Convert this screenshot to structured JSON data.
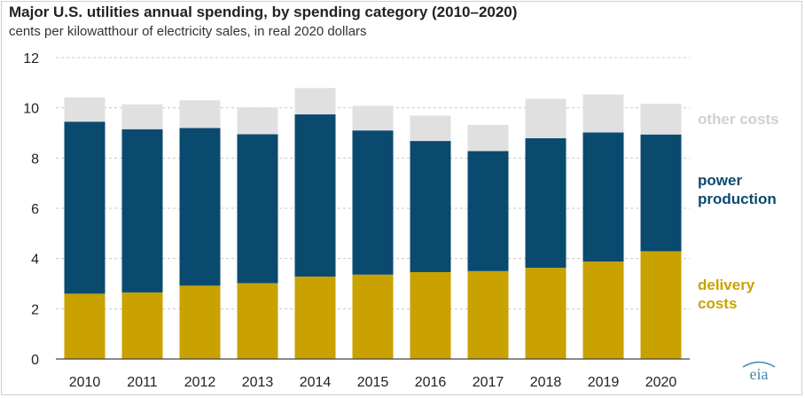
{
  "colors": {
    "delivery": "#C9A200",
    "power": "#0B4A6F",
    "other": "#E0E0E0",
    "axis": "#444444",
    "grid": "#C8C8C8",
    "logo": "#3E89A8"
  },
  "logo_text": "eia",
  "chart_data": {
    "type": "bar",
    "stacked": true,
    "title": "Major U.S. utilities annual spending, by spending category (2010–2020)",
    "subtitle": "cents per kilowatthour of electricity sales, in real 2020 dollars",
    "xlabel": "",
    "ylabel": "",
    "ylim": [
      0,
      12
    ],
    "yticks": [
      "0",
      "2",
      "4",
      "6",
      "8",
      "10",
      "12"
    ],
    "grid": true,
    "legend_position": "right",
    "categories": [
      "2010",
      "2011",
      "2012",
      "2013",
      "2014",
      "2015",
      "2016",
      "2017",
      "2018",
      "2019",
      "2020"
    ],
    "series": [
      {
        "name": "delivery costs",
        "key": "delivery",
        "legend": [
          "delivery",
          "costs"
        ],
        "values": [
          2.6,
          2.65,
          2.92,
          3.02,
          3.28,
          3.36,
          3.46,
          3.5,
          3.63,
          3.88,
          4.29
        ]
      },
      {
        "name": "power production",
        "key": "power",
        "legend": [
          "power",
          "production"
        ],
        "values": [
          6.85,
          6.5,
          6.28,
          5.93,
          6.46,
          5.74,
          5.22,
          4.78,
          5.16,
          5.14,
          4.65
        ]
      },
      {
        "name": "other costs",
        "key": "other",
        "legend": [
          "other costs"
        ],
        "values": [
          0.97,
          0.99,
          1.1,
          1.07,
          1.05,
          0.98,
          1.01,
          1.04,
          1.57,
          1.51,
          1.22
        ]
      }
    ]
  }
}
